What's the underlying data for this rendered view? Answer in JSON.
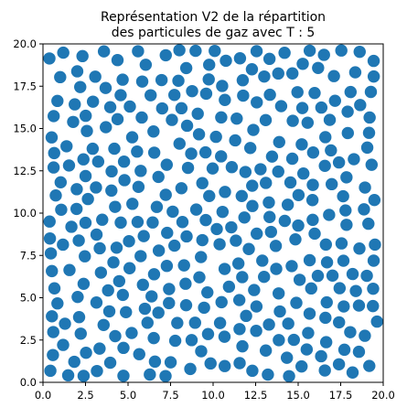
{
  "chart_data": {
    "type": "scatter",
    "title_line1": "Représentation V2 de la répartition",
    "title_line2": "des particules de gaz avec T : 5",
    "xlabel": "",
    "ylabel": "",
    "xlim": [
      0,
      20
    ],
    "ylim": [
      0,
      20
    ],
    "xticks": [
      "0.0",
      "2.5",
      "5.0",
      "7.5",
      "10.0",
      "12.5",
      "15.0",
      "17.5",
      "20.0"
    ],
    "yticks": [
      "0.0",
      "2.5",
      "5.0",
      "7.5",
      "10.0",
      "12.5",
      "15.0",
      "17.5",
      "20.0"
    ],
    "marker_color": "#1f77b4",
    "grid": false,
    "points_estimated_count": 420,
    "distribution": "uniform random, non-overlapping discs of approx. 0.7 units diameter"
  }
}
